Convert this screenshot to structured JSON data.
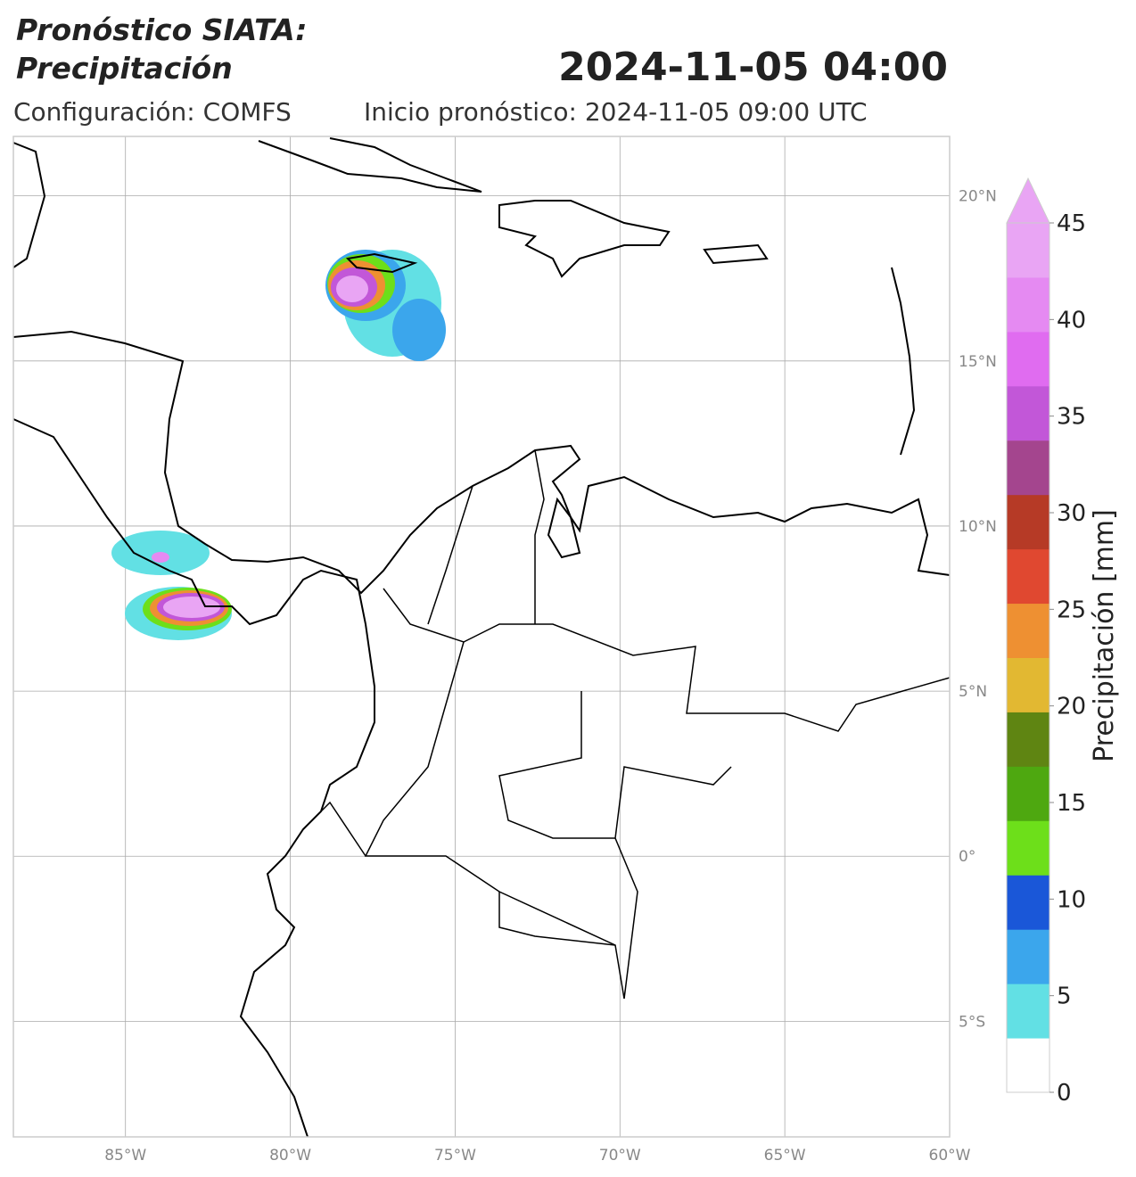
{
  "header": {
    "title_line1": "Pronóstico SIATA:",
    "title_line2": "Precipitación",
    "datetime": "2024-11-05 04:00",
    "configuration": "Configuración: COMFS",
    "init": "Inicio pronóstico: 2024-11-05 09:00 UTC"
  },
  "map": {
    "xlim": [
      -88.4,
      -60
    ],
    "ylim": [
      -8.5,
      21.8
    ],
    "xticks": [
      {
        "value": -85,
        "label": "85°W"
      },
      {
        "value": -80,
        "label": "80°W"
      },
      {
        "value": -75,
        "label": "75°W"
      },
      {
        "value": -70,
        "label": "70°W"
      },
      {
        "value": -65,
        "label": "65°W"
      },
      {
        "value": -60,
        "label": "60°W"
      }
    ],
    "yticks": [
      {
        "value": 20,
        "label": "20°N"
      },
      {
        "value": 15,
        "label": "15°N"
      },
      {
        "value": 10,
        "label": "10°N"
      },
      {
        "value": 5,
        "label": "5°N"
      },
      {
        "value": 0,
        "label": "0°"
      },
      {
        "value": -5,
        "label": "5°S"
      }
    ]
  },
  "colorbar": {
    "label": "Precipitación [mm]",
    "clim": [
      0,
      45
    ],
    "ticks": [
      0,
      5,
      10,
      15,
      20,
      25,
      30,
      35,
      40,
      45
    ],
    "colors": [
      "#ffffff",
      "#62e0e4",
      "#3ba6ec",
      "#1a57d8",
      "#6ddf1a",
      "#4ea810",
      "#5f8512",
      "#e2b832",
      "#ee9032",
      "#e04830",
      "#b63a26",
      "#a4458e",
      "#c257d8",
      "#e06cf0",
      "#e58af2",
      "#e9a5f4"
    ]
  }
}
